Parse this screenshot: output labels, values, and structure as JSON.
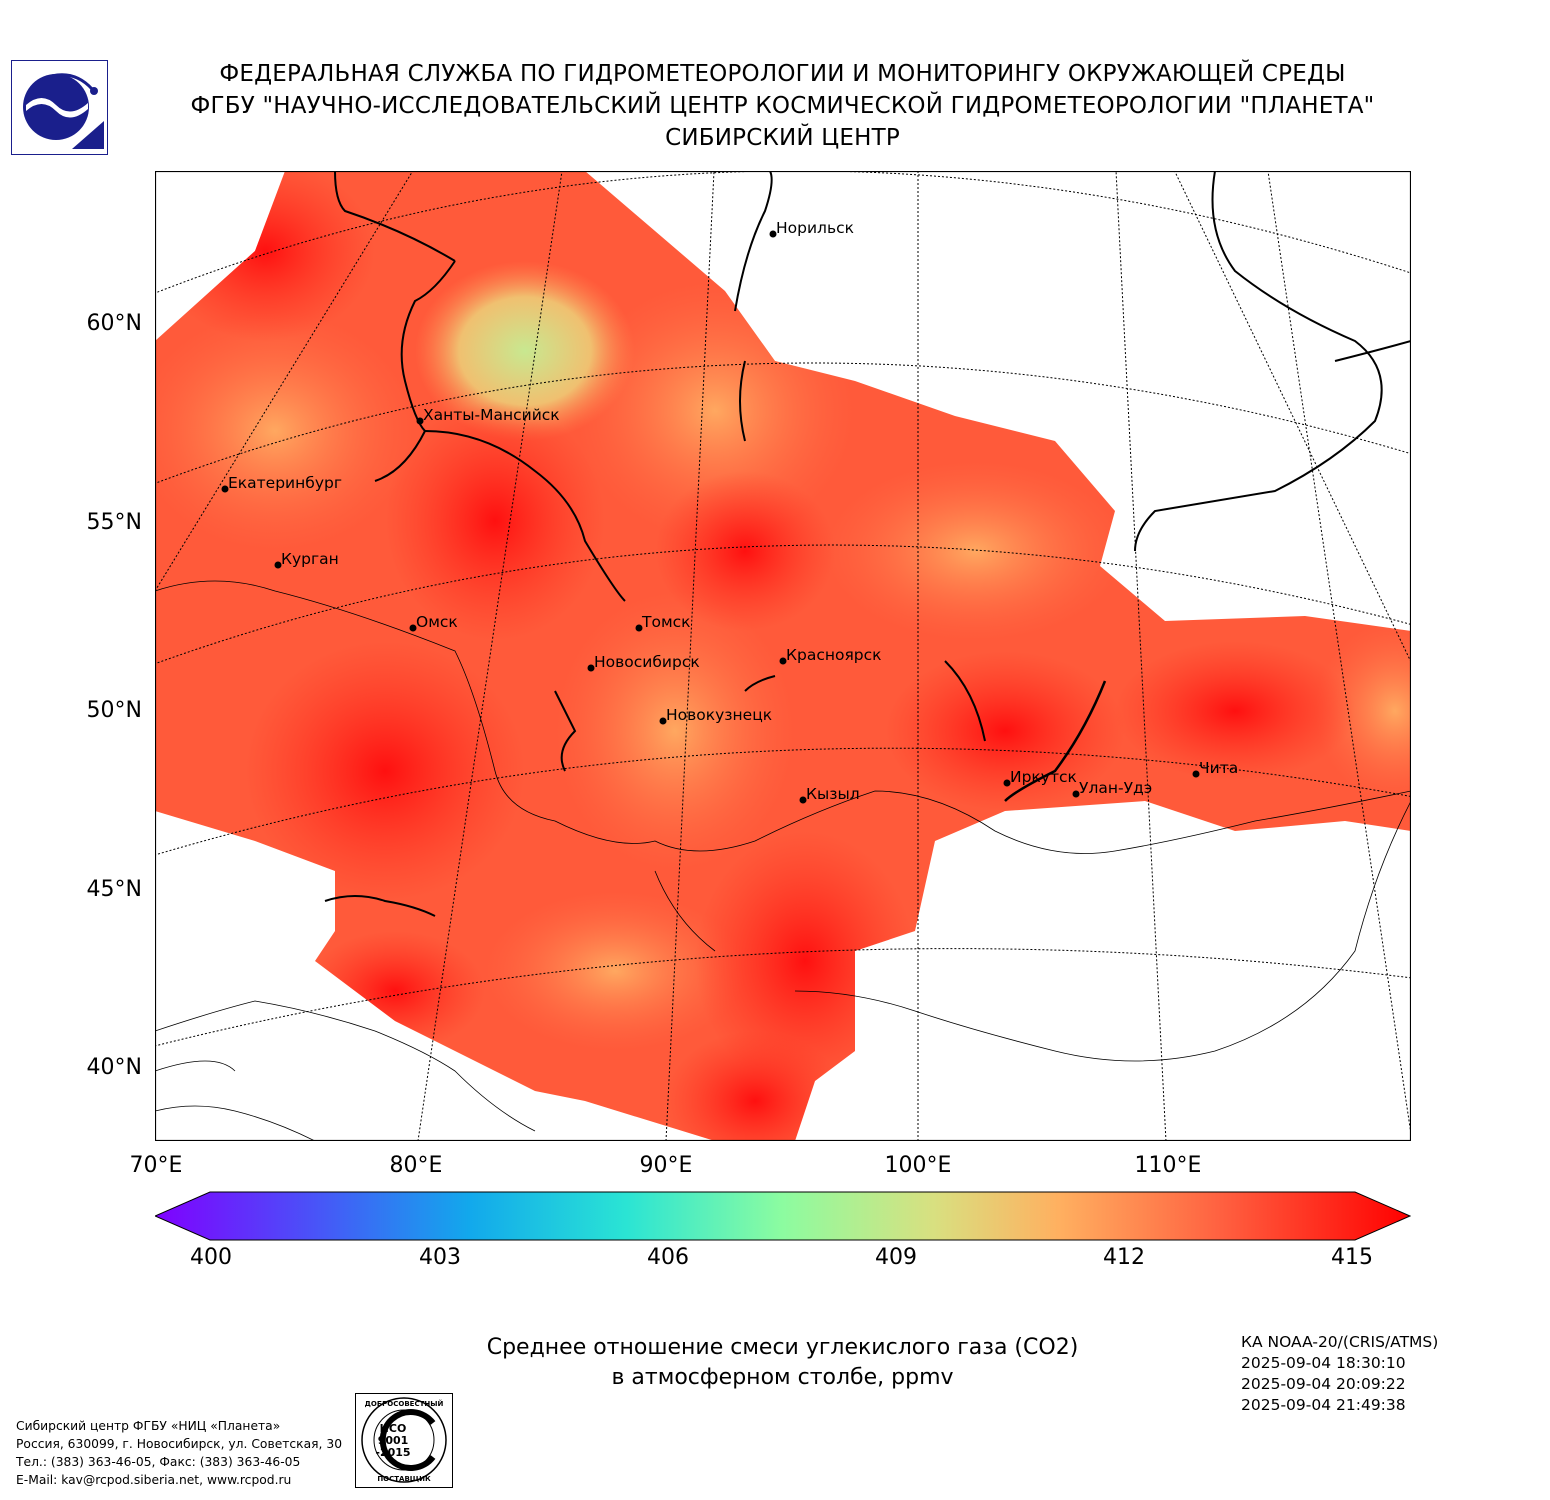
{
  "header": {
    "line1": "ФЕДЕРАЛЬНАЯ СЛУЖБА ПО ГИДРОМЕТЕОРОЛОГИИ И МОНИТОРИНГУ ОКРУЖАЮЩЕЙ СРЕДЫ",
    "line2": "ФГБУ \"НАУЧНО-ИССЛЕДОВАТЕЛЬСКИЙ ЦЕНТР КОСМИЧЕСКОЙ ГИДРОМЕТЕОРОЛОГИИ \"ПЛАНЕТА\"",
    "line3": "СИБИРСКИЙ ЦЕНТР"
  },
  "map": {
    "lat_labels": [
      "60°N",
      "55°N",
      "50°N",
      "45°N",
      "40°N"
    ],
    "lon_labels": [
      "70°E",
      "80°E",
      "90°E",
      "100°E",
      "110°E"
    ],
    "cities": [
      {
        "name": "Норильск"
      },
      {
        "name": "Ханты-Мансийск"
      },
      {
        "name": "Екатеринбург"
      },
      {
        "name": "Курган"
      },
      {
        "name": "Омск"
      },
      {
        "name": "Томск"
      },
      {
        "name": "Новосибирск"
      },
      {
        "name": "Красноярск"
      },
      {
        "name": "Новокузнецк"
      },
      {
        "name": "Кызыл"
      },
      {
        "name": "Иркутск"
      },
      {
        "name": "Улан-Удэ"
      },
      {
        "name": "Чита"
      }
    ]
  },
  "colorbar": {
    "min": 400,
    "max": 415,
    "ticks": [
      "400",
      "403",
      "406",
      "409",
      "412",
      "415"
    ],
    "colors": [
      "#8000ff",
      "#4a52f8",
      "#12a8ec",
      "#2ae4d4",
      "#8cfca0",
      "#d8e080",
      "#ffb060",
      "#ff6040",
      "#ff0000"
    ]
  },
  "caption": {
    "line1": "Среднее отношение смеси углекислого газа (CO2)",
    "line2": "в атмосферном столбе, ppmv"
  },
  "satellite": {
    "instrument": "КА NOAA-20/(CRIS/ATMS)",
    "time1": "2025-09-04 18:30:10",
    "time2": "2025-09-04 20:09:22",
    "time3": "2025-09-04 21:49:38"
  },
  "contact": {
    "org": "Сибирский центр ФГБУ «НИЦ «Планета»",
    "address": "Россия, 630099, г. Новосибирск, ул. Советская, 30",
    "phone": "Тел.: (383) 363-46-05, Факс: (383) 363-46-05",
    "email": "E-Mail: kav@rcpod.siberia.net, www.rcpod.ru"
  },
  "iso_stamp": {
    "top": "ДОБРОСОВЕСТНЫЙ",
    "l1": "ИСО",
    "l2": "9001",
    "l3": "-2015",
    "bottom": "ПОСТАВЩИК"
  }
}
